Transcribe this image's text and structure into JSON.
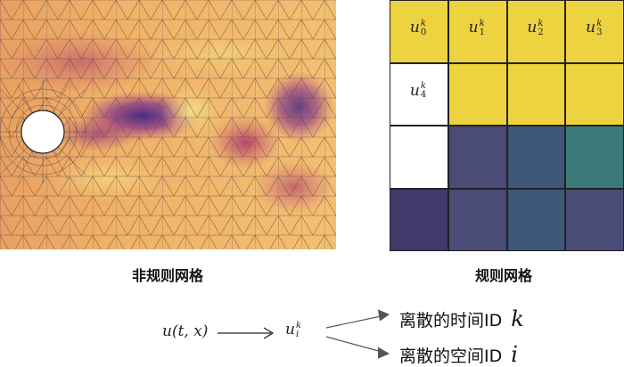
{
  "captions": {
    "irregular": "非规则网格",
    "regular": "规则网格"
  },
  "grid": {
    "colors": {
      "yellow": "#ecd33f",
      "white": "#ffffff",
      "slate": "#4b4b77",
      "teal": "#3a7b7a",
      "bluegrey": "#3f5779",
      "darkpurple": "#40396a"
    },
    "rows": [
      [
        "yellow",
        "yellow",
        "yellow",
        "yellow"
      ],
      [
        "white",
        "yellow",
        "yellow",
        "yellow"
      ],
      [
        "white",
        "slate",
        "bluegrey",
        "teal"
      ],
      [
        "darkpurple",
        "slate",
        "bluegrey",
        "slate"
      ]
    ],
    "labels": [
      {
        "sub": "0",
        "sup": "k"
      },
      {
        "sub": "1",
        "sup": "k"
      },
      {
        "sub": "2",
        "sup": "k"
      },
      {
        "sub": "3",
        "sup": "k"
      },
      {
        "sub": "4",
        "sup": "k"
      }
    ],
    "label_base": "u"
  },
  "formula": {
    "function": "u(t, x)",
    "target_base": "u",
    "target_sub": "i",
    "target_sup": "k",
    "time_text": "离散的时间ID",
    "time_var": "k",
    "space_text": "离散的空间ID",
    "space_var": "i"
  }
}
